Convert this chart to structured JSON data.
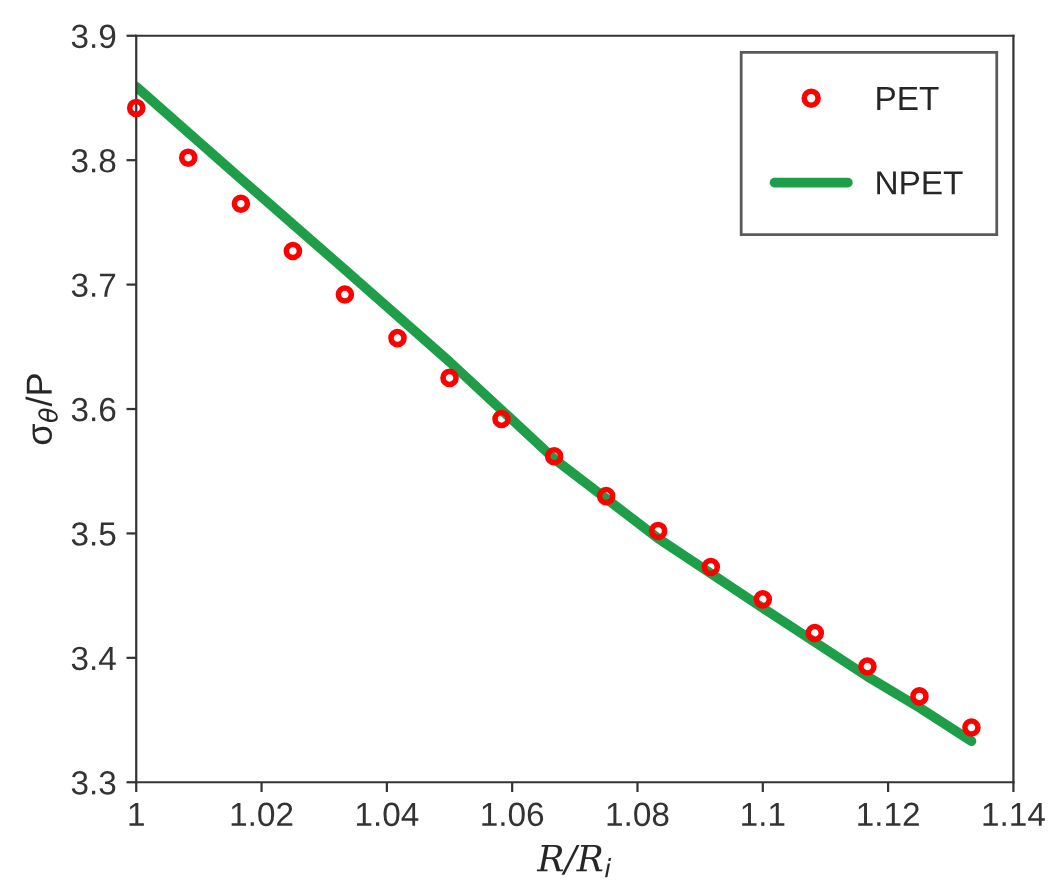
{
  "chart_data": {
    "type": "scatter",
    "xlabel": "R/R$_{i}$",
    "ylabel": "σ$_{θ}$/P",
    "xlim": [
      1,
      1.14
    ],
    "xticks": [
      1,
      1.02,
      1.04,
      1.06,
      1.08,
      1.1,
      1.12,
      1.14
    ],
    "ylim": [
      3.3,
      3.9
    ],
    "yticks": [
      3.3,
      3.4,
      3.5,
      3.6,
      3.7,
      3.8,
      3.9
    ],
    "grid": false,
    "legend": "top right",
    "line_style": "solid",
    "series": [
      {
        "name": "PET",
        "marker": "circle",
        "color": "#ff0000",
        "x": [
          1.0,
          1.0083,
          1.0167,
          1.025,
          1.0333,
          1.0417,
          1.05,
          1.0583,
          1.0667,
          1.075,
          1.0833,
          1.0917,
          1.1,
          1.1083,
          1.1167,
          1.125,
          1.1333
        ],
        "values": [
          3.842,
          3.802,
          3.765,
          3.727,
          3.692,
          3.657,
          3.625,
          3.592,
          3.562,
          3.53,
          3.502,
          3.473,
          3.447,
          3.42,
          3.393,
          3.369,
          3.344
        ]
      },
      {
        "name": "NPET",
        "type": "line",
        "color": "#1e9e48",
        "x": [
          1.0,
          1.0167,
          1.0333,
          1.05,
          1.0667,
          1.0833,
          1.1,
          1.1167,
          1.125,
          1.1333
        ],
        "values": [
          3.859,
          3.785,
          3.712,
          3.638,
          3.56,
          3.496,
          3.44,
          3.385,
          3.36,
          3.333
        ]
      }
    ]
  }
}
